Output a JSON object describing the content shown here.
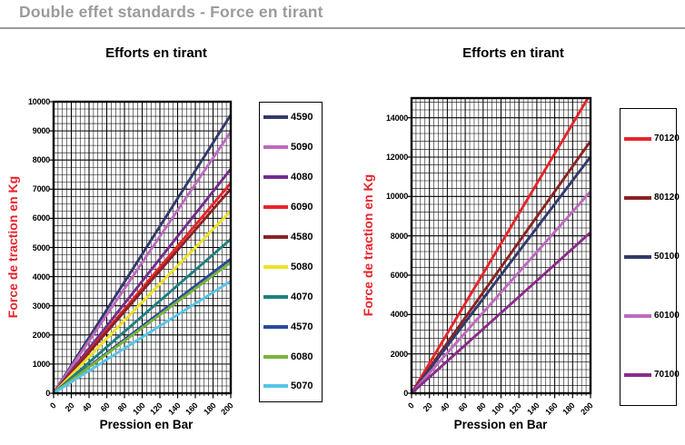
{
  "page": {
    "header": "Double effet standards - Force en tirant"
  },
  "colors": {
    "header_text": "#9b9b9b",
    "grid": "#000000",
    "y_axis_title": "#e8242c"
  },
  "chart_data": [
    {
      "type": "line",
      "title": "Efforts en tirant",
      "xlabel": "Pression en Bar",
      "ylabel": "Force de traction en Kg",
      "grid": true,
      "legend_position": "right",
      "x_range": [
        0,
        200
      ],
      "x_major_step": 20,
      "x_minor_step": 5,
      "y_range": [
        0,
        10000
      ],
      "y_major_step": 1000,
      "y_minor_step": 250,
      "x_tick_labels": [
        "0",
        "20",
        "40",
        "60",
        "80",
        "100",
        "120",
        "140",
        "160",
        "180",
        "200"
      ],
      "y_tick_labels": [
        "0",
        "1000",
        "2000",
        "3000",
        "4000",
        "5000",
        "6000",
        "7000",
        "8000",
        "9000",
        "10000"
      ],
      "series": [
        {
          "name": "4590",
          "color": "#333a6b",
          "x": [
            0,
            200
          ],
          "y": [
            0,
            9545
          ]
        },
        {
          "name": "5090",
          "color": "#bd6abd",
          "x": [
            0,
            200
          ],
          "y": [
            0,
            8967
          ]
        },
        {
          "name": "4080",
          "color": "#722e8c",
          "x": [
            0,
            200
          ],
          "y": [
            0,
            7690
          ]
        },
        {
          "name": "6090",
          "color": "#e8242c",
          "x": [
            0,
            200
          ],
          "y": [
            0,
            7208
          ]
        },
        {
          "name": "4580",
          "color": "#8b2323",
          "x": [
            0,
            200
          ],
          "y": [
            0,
            7008
          ]
        },
        {
          "name": "5080",
          "color": "#ede226",
          "x": [
            0,
            200
          ],
          "y": [
            0,
            6248
          ]
        },
        {
          "name": "4070",
          "color": "#1f7f7f",
          "x": [
            0,
            200
          ],
          "y": [
            0,
            5287
          ]
        },
        {
          "name": "4570",
          "color": "#2a4a9e",
          "x": [
            0,
            200
          ],
          "y": [
            0,
            4606
          ]
        },
        {
          "name": "6080",
          "color": "#7ab33c",
          "x": [
            0,
            200
          ],
          "y": [
            0,
            4486
          ]
        },
        {
          "name": "5070",
          "color": "#57c4e8",
          "x": [
            0,
            200
          ],
          "y": [
            0,
            3845
          ]
        }
      ]
    },
    {
      "type": "line",
      "title": "Efforts en tirant",
      "xlabel": "Pression en Bar",
      "ylabel": "Force de traction en Kg",
      "grid": true,
      "legend_position": "right",
      "x_range": [
        0,
        200
      ],
      "x_major_step": 20,
      "x_minor_step": 5,
      "y_range": [
        0,
        15000
      ],
      "y_major_step": 2000,
      "y_minor_step": 400,
      "x_tick_labels": [
        "0",
        "20",
        "40",
        "60",
        "80",
        "100",
        "120",
        "140",
        "160",
        "180",
        "200"
      ],
      "y_tick_labels": [
        "0",
        "2000",
        "4000",
        "6000",
        "8000",
        "10000",
        "12000",
        "14000"
      ],
      "series": [
        {
          "name": "70120",
          "color": "#e8242c",
          "x": [
            0,
            200
          ],
          "y": [
            0,
            15218
          ]
        },
        {
          "name": "80120",
          "color": "#8b2323",
          "x": [
            0,
            200
          ],
          "y": [
            0,
            12815
          ]
        },
        {
          "name": "50100",
          "color": "#333a6b",
          "x": [
            0,
            200
          ],
          "y": [
            0,
            12015
          ]
        },
        {
          "name": "60100",
          "color": "#bd6abd",
          "x": [
            0,
            200
          ],
          "y": [
            0,
            10253
          ]
        },
        {
          "name": "70100",
          "color": "#8b2b8b",
          "x": [
            0,
            200
          ],
          "y": [
            0,
            8171
          ]
        }
      ]
    }
  ]
}
